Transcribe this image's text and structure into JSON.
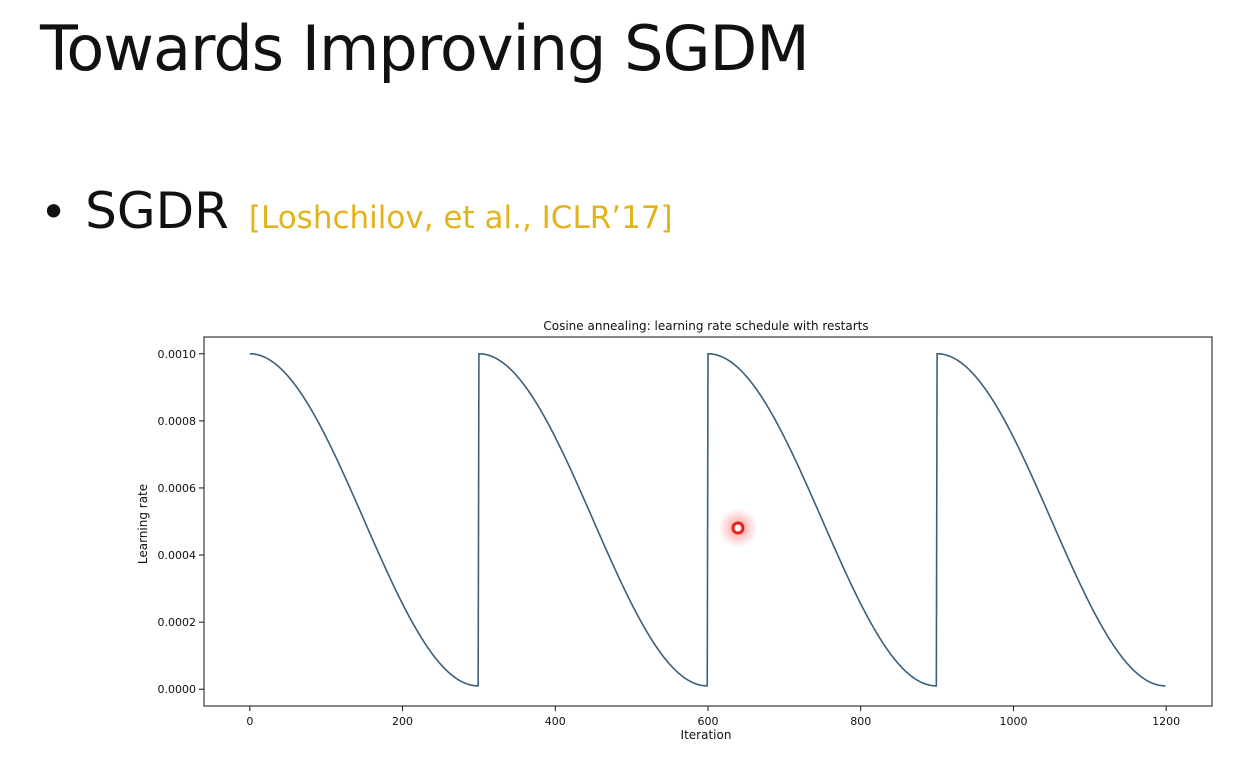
{
  "slide": {
    "title": "Towards Improving SGDM",
    "bullet": {
      "marker": "•",
      "text": "SGDR",
      "citation": "[Loshchilov, et al., ICLR’17]"
    }
  },
  "colors": {
    "citation": "#e3b31c",
    "line": "#3b5f7a",
    "cursor": "#e8201c"
  },
  "chart_data": {
    "type": "line",
    "title": "Cosine annealing: learning rate schedule with restarts",
    "xlabel": "Iteration",
    "ylabel": "Learning rate",
    "xlim": [
      -60,
      1260
    ],
    "ylim": [
      -5e-05,
      0.00105
    ],
    "xticks": [
      0,
      200,
      400,
      600,
      800,
      1000,
      1200
    ],
    "xtick_labels": [
      "0",
      "200",
      "400",
      "600",
      "800",
      "1000",
      "1200"
    ],
    "yticks": [
      0,
      0.0002,
      0.0004,
      0.0006,
      0.0008,
      0.001
    ],
    "ytick_labels": [
      "0.0000",
      "0.0002",
      "0.0004",
      "0.0006",
      "0.0008",
      "0.0010"
    ],
    "grid": false,
    "series": [
      {
        "lr_max": 0.001,
        "lr_min": 1e-05,
        "cycle_length": 300,
        "iterations": 1200
      }
    ]
  }
}
